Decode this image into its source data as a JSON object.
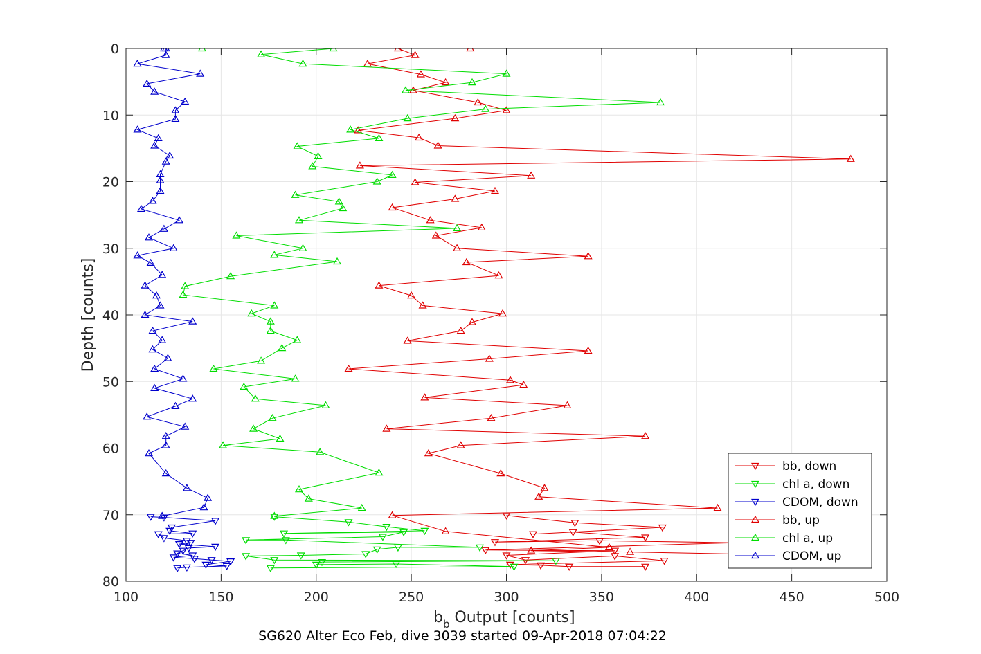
{
  "caption": "SG620 Alter Eco Feb, dive 3039 started 09-Apr-2018 07:04:22",
  "chart_data": {
    "type": "line",
    "xlabel_main": "b",
    "xlabel_sub": "b",
    "xlabel_rest": " Output [counts]",
    "ylabel": "Depth [counts]",
    "xlim": [
      100,
      500
    ],
    "ylim": [
      0,
      80
    ],
    "y_reversed": true,
    "grid": true,
    "legend_position": "bottom-right",
    "xticks": [
      100,
      150,
      200,
      250,
      300,
      350,
      400,
      450,
      500
    ],
    "yticks": [
      0,
      10,
      20,
      30,
      40,
      50,
      60,
      70,
      80
    ],
    "series": [
      {
        "name": "bb, down",
        "color": "#e00000",
        "marker": "triangle-down",
        "points": [
          [
            300,
            70.1
          ],
          [
            336,
            71.2
          ],
          [
            382,
            71.9
          ],
          [
            314,
            72.9
          ],
          [
            335,
            72.6
          ],
          [
            373,
            73.4
          ],
          [
            294,
            74.1
          ],
          [
            349,
            73.9
          ],
          [
            420,
            74.2
          ],
          [
            289,
            75.3
          ],
          [
            357,
            75.4
          ],
          [
            300,
            76.1
          ],
          [
            310,
            76.8
          ],
          [
            357,
            76.2
          ],
          [
            383,
            76.9
          ],
          [
            302,
            77.5
          ],
          [
            318,
            77.6
          ],
          [
            333,
            77.8
          ],
          [
            373,
            77.8
          ]
        ]
      },
      {
        "name": "chl a, down",
        "color": "#00dd00",
        "marker": "triangle-down",
        "points": [
          [
            178,
            70.3
          ],
          [
            217,
            71.1
          ],
          [
            237,
            71.8
          ],
          [
            257,
            72.4
          ],
          [
            183,
            72.8
          ],
          [
            246,
            72.6
          ],
          [
            235,
            73.3
          ],
          [
            163,
            73.8
          ],
          [
            184,
            73.8
          ],
          [
            286,
            74.9
          ],
          [
            243,
            74.9
          ],
          [
            232,
            75.2
          ],
          [
            226,
            75.9
          ],
          [
            192,
            76.1
          ],
          [
            163,
            76.2
          ],
          [
            178,
            76.8
          ],
          [
            326,
            76.9
          ],
          [
            203,
            77.1
          ],
          [
            200,
            77.5
          ],
          [
            242,
            77.4
          ],
          [
            304,
            77.8
          ],
          [
            176,
            78.0
          ]
        ]
      },
      {
        "name": "CDOM, down",
        "color": "#0000cc",
        "marker": "triangle-down",
        "points": [
          [
            113,
            70.3
          ],
          [
            120,
            70.4
          ],
          [
            147,
            70.9
          ],
          [
            124,
            71.9
          ],
          [
            123,
            72.4
          ],
          [
            135,
            72.8
          ],
          [
            117,
            72.9
          ],
          [
            120,
            73.5
          ],
          [
            132,
            73.9
          ],
          [
            134,
            74.2
          ],
          [
            128,
            74.4
          ],
          [
            147,
            74.8
          ],
          [
            133,
            75.0
          ],
          [
            130,
            75.4
          ],
          [
            127,
            75.8
          ],
          [
            135,
            76.1
          ],
          [
            125,
            76.4
          ],
          [
            136,
            76.6
          ],
          [
            145,
            76.8
          ],
          [
            155,
            77.0
          ],
          [
            142,
            77.5
          ],
          [
            153,
            77.7
          ],
          [
            132,
            77.9
          ],
          [
            127,
            78.0
          ]
        ]
      },
      {
        "name": "bb, up",
        "color": "#e00000",
        "marker": "triangle-up",
        "points": [
          [
            281,
            0.0
          ],
          [
            243,
            0.0
          ],
          [
            252,
            1.0
          ],
          [
            227,
            2.3
          ],
          [
            255,
            3.9
          ],
          [
            268,
            5.1
          ],
          [
            251,
            6.3
          ],
          [
            285,
            8.1
          ],
          [
            300,
            9.3
          ],
          [
            273,
            10.5
          ],
          [
            222,
            12.3
          ],
          [
            254,
            13.4
          ],
          [
            264,
            14.6
          ],
          [
            481,
            16.6
          ],
          [
            223,
            17.6
          ],
          [
            313,
            19.1
          ],
          [
            252,
            20.1
          ],
          [
            294,
            21.4
          ],
          [
            273,
            22.6
          ],
          [
            240,
            23.9
          ],
          [
            260,
            25.8
          ],
          [
            287,
            26.9
          ],
          [
            263,
            28.1
          ],
          [
            274,
            30.0
          ],
          [
            343,
            31.2
          ],
          [
            279,
            32.1
          ],
          [
            296,
            34.1
          ],
          [
            233,
            35.6
          ],
          [
            250,
            37.1
          ],
          [
            256,
            38.6
          ],
          [
            298,
            39.8
          ],
          [
            282,
            41.1
          ],
          [
            276,
            42.4
          ],
          [
            248,
            43.9
          ],
          [
            343,
            45.4
          ],
          [
            291,
            46.6
          ],
          [
            217,
            48.1
          ],
          [
            302,
            49.8
          ],
          [
            309,
            50.5
          ],
          [
            257,
            52.4
          ],
          [
            332,
            53.6
          ],
          [
            292,
            55.5
          ],
          [
            237,
            57.1
          ],
          [
            373,
            58.2
          ],
          [
            276,
            59.6
          ],
          [
            259,
            60.8
          ],
          [
            297,
            63.8
          ],
          [
            320,
            66.0
          ],
          [
            317,
            67.3
          ],
          [
            411,
            69.0
          ],
          [
            240,
            70.1
          ],
          [
            268,
            72.5
          ],
          [
            354,
            74.9
          ],
          [
            313,
            75.4
          ],
          [
            365,
            75.6
          ],
          [
            420,
            75.9
          ]
        ]
      },
      {
        "name": "chl a, up",
        "color": "#00dd00",
        "marker": "triangle-up",
        "points": [
          [
            140,
            0.0
          ],
          [
            209,
            0.0
          ],
          [
            171,
            0.9
          ],
          [
            193,
            2.3
          ],
          [
            300,
            3.8
          ],
          [
            282,
            5.1
          ],
          [
            247,
            6.3
          ],
          [
            381,
            8.1
          ],
          [
            289,
            9.1
          ],
          [
            248,
            10.5
          ],
          [
            218,
            12.2
          ],
          [
            233,
            13.5
          ],
          [
            190,
            14.7
          ],
          [
            201,
            16.2
          ],
          [
            198,
            17.7
          ],
          [
            240,
            19.0
          ],
          [
            232,
            20.0
          ],
          [
            189,
            22.0
          ],
          [
            212,
            23.0
          ],
          [
            214,
            24.0
          ],
          [
            191,
            25.8
          ],
          [
            274,
            27.0
          ],
          [
            158,
            28.1
          ],
          [
            193,
            30.0
          ],
          [
            178,
            31.0
          ],
          [
            211,
            32.0
          ],
          [
            155,
            34.2
          ],
          [
            131,
            35.7
          ],
          [
            130,
            37.0
          ],
          [
            178,
            38.6
          ],
          [
            166,
            39.8
          ],
          [
            176,
            41.0
          ],
          [
            176,
            42.4
          ],
          [
            190,
            43.8
          ],
          [
            182,
            45.0
          ],
          [
            171,
            46.9
          ],
          [
            146,
            48.1
          ],
          [
            189,
            49.6
          ],
          [
            162,
            50.8
          ],
          [
            168,
            52.6
          ],
          [
            205,
            53.6
          ],
          [
            177,
            55.5
          ],
          [
            167,
            57.1
          ],
          [
            181,
            58.6
          ],
          [
            151,
            59.6
          ],
          [
            202,
            60.6
          ],
          [
            233,
            63.7
          ],
          [
            191,
            66.2
          ],
          [
            196,
            67.6
          ],
          [
            224,
            69.0
          ],
          [
            178,
            70.2
          ]
        ]
      },
      {
        "name": "CDOM, up",
        "color": "#0000cc",
        "marker": "triangle-up",
        "points": [
          [
            120,
            0.0
          ],
          [
            121,
            0.0
          ],
          [
            121,
            1.0
          ],
          [
            106,
            2.3
          ],
          [
            139,
            3.8
          ],
          [
            111,
            5.3
          ],
          [
            115,
            6.5
          ],
          [
            131,
            8.0
          ],
          [
            126,
            9.3
          ],
          [
            126,
            10.6
          ],
          [
            106,
            12.2
          ],
          [
            117,
            13.5
          ],
          [
            115,
            14.6
          ],
          [
            123,
            16.1
          ],
          [
            121,
            17.0
          ],
          [
            118,
            18.9
          ],
          [
            118,
            19.8
          ],
          [
            118,
            21.4
          ],
          [
            114,
            22.9
          ],
          [
            108,
            24.1
          ],
          [
            128,
            25.8
          ],
          [
            120,
            27.1
          ],
          [
            112,
            28.4
          ],
          [
            125,
            30.0
          ],
          [
            106,
            31.1
          ],
          [
            113,
            32.2
          ],
          [
            119,
            34.0
          ],
          [
            110,
            35.6
          ],
          [
            116,
            37.1
          ],
          [
            118,
            38.6
          ],
          [
            110,
            40.0
          ],
          [
            135,
            41.0
          ],
          [
            114,
            42.4
          ],
          [
            119,
            43.8
          ],
          [
            114,
            45.2
          ],
          [
            122,
            46.5
          ],
          [
            115,
            48.1
          ],
          [
            130,
            49.6
          ],
          [
            115,
            51.0
          ],
          [
            135,
            52.6
          ],
          [
            126,
            53.7
          ],
          [
            111,
            55.3
          ],
          [
            131,
            56.8
          ],
          [
            121,
            58.2
          ],
          [
            121,
            59.6
          ],
          [
            112,
            60.8
          ],
          [
            121,
            63.8
          ],
          [
            132,
            66.0
          ],
          [
            143,
            67.5
          ],
          [
            141,
            68.9
          ],
          [
            119,
            70.2
          ]
        ]
      }
    ]
  }
}
